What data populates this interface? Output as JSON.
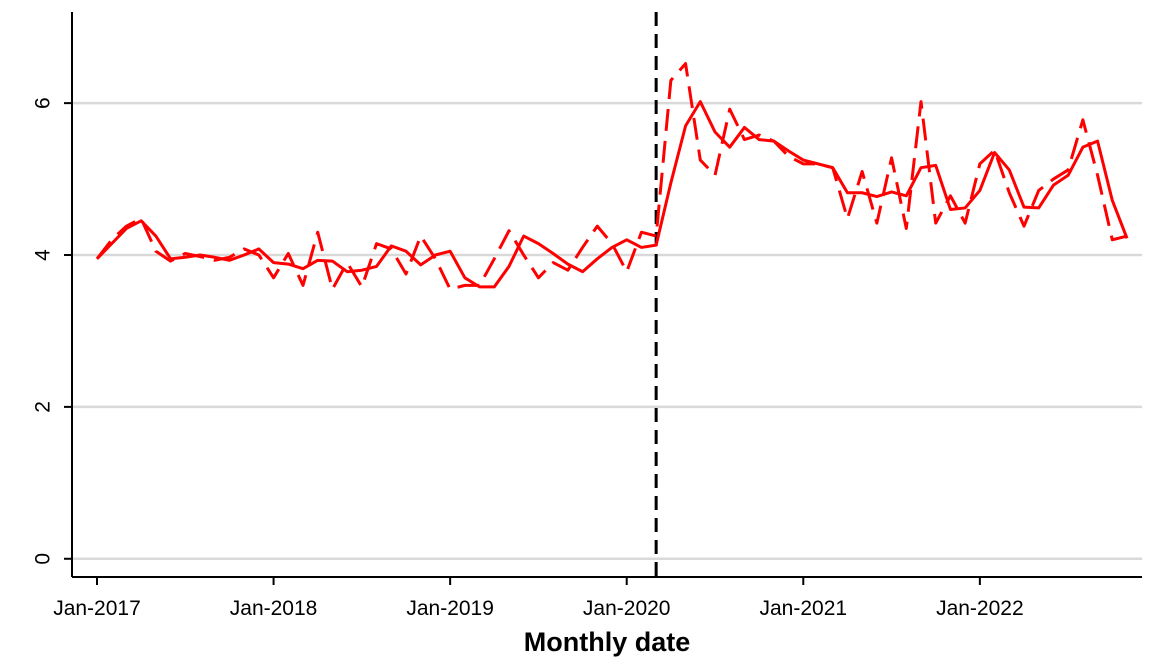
{
  "chart_data": {
    "type": "line",
    "xlabel": "Monthly date",
    "categories": [
      "Jan-2017",
      null,
      null,
      null,
      null,
      null,
      null,
      null,
      null,
      null,
      null,
      null,
      "Jan-2018",
      null,
      null,
      null,
      null,
      null,
      null,
      null,
      null,
      null,
      null,
      null,
      "Jan-2019",
      null,
      null,
      null,
      null,
      null,
      null,
      null,
      null,
      null,
      null,
      null,
      "Jan-2020",
      null,
      null,
      null,
      null,
      null,
      null,
      null,
      null,
      null,
      null,
      null,
      "Jan-2021",
      null,
      null,
      null,
      null,
      null,
      null,
      null,
      null,
      null,
      null,
      null,
      "Jan-2022",
      null,
      null,
      null,
      null,
      null,
      null,
      null,
      null,
      null,
      null
    ],
    "series": [
      {
        "color": "#ff0000",
        "style": "solid",
        "values": [
          3.95,
          4.15,
          4.35,
          4.45,
          4.25,
          3.95,
          3.97,
          4.0,
          3.97,
          3.93,
          4.0,
          4.08,
          3.9,
          3.88,
          3.82,
          3.93,
          3.92,
          3.78,
          3.8,
          3.85,
          4.12,
          4.05,
          3.87,
          4.0,
          4.05,
          3.7,
          3.58,
          3.58,
          3.85,
          4.25,
          4.15,
          4.02,
          3.88,
          3.78,
          3.95,
          4.1,
          4.2,
          4.1,
          4.13,
          4.95,
          5.7,
          6.02,
          5.62,
          5.42,
          5.68,
          5.52,
          5.5,
          5.37,
          5.25,
          5.2,
          5.15,
          4.82,
          4.82,
          4.77,
          4.83,
          4.78,
          5.15,
          5.18,
          4.6,
          4.62,
          4.85,
          5.35,
          5.12,
          4.63,
          4.62,
          4.92,
          5.05,
          5.42,
          5.5,
          4.72,
          4.22
        ]
      },
      {
        "color": "#ff0000",
        "style": "dashed",
        "values": [
          3.95,
          4.2,
          4.38,
          4.48,
          4.05,
          3.92,
          4.02,
          3.98,
          3.93,
          3.97,
          4.08,
          4.0,
          3.7,
          4.02,
          3.6,
          4.3,
          3.55,
          3.9,
          3.58,
          4.15,
          4.08,
          3.75,
          4.25,
          3.95,
          3.55,
          3.6,
          3.6,
          3.95,
          4.32,
          4.0,
          3.7,
          3.9,
          3.8,
          4.1,
          4.38,
          4.15,
          3.78,
          4.3,
          4.25,
          6.3,
          6.52,
          5.25,
          5.05,
          5.92,
          5.52,
          5.58,
          5.5,
          5.3,
          5.2,
          5.2,
          5.15,
          4.48,
          5.1,
          4.42,
          5.28,
          4.35,
          6.02,
          4.42,
          4.78,
          4.42,
          5.2,
          5.38,
          4.82,
          4.38,
          4.85,
          5.0,
          5.12,
          5.78,
          5.05,
          4.2,
          4.25
        ]
      }
    ],
    "vline": 38,
    "ylim": [
      -0.24,
      7.2
    ],
    "yticks": [
      0,
      2,
      4,
      6
    ],
    "grid": true
  }
}
